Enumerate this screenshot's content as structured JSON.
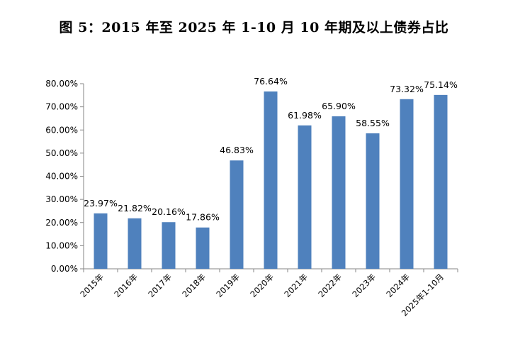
{
  "chart_data": {
    "type": "bar",
    "title": "图 5：2015 年至 2025 年 1-10 月 10 年期及以上债券占比",
    "categories": [
      "2015年",
      "2016年",
      "2017年",
      "2018年",
      "2019年",
      "2020年",
      "2021年",
      "2022年",
      "2023年",
      "2024年",
      "2025年1-10月"
    ],
    "values": [
      23.97,
      21.82,
      20.16,
      17.86,
      46.83,
      76.64,
      61.98,
      65.9,
      58.55,
      73.32,
      75.14
    ],
    "data_labels": [
      "23.97%",
      "21.82%",
      "20.16%",
      "17.86%",
      "46.83%",
      "76.64%",
      "61.98%",
      "65.90%",
      "58.55%",
      "73.32%",
      "75.14%"
    ],
    "xlabel": "",
    "ylabel": "",
    "ylim": [
      0,
      80
    ],
    "yticks": [
      0,
      10,
      20,
      30,
      40,
      50,
      60,
      70,
      80
    ],
    "ytick_labels": [
      "0.00%",
      "10.00%",
      "20.00%",
      "30.00%",
      "40.00%",
      "50.00%",
      "60.00%",
      "70.00%",
      "80.00%"
    ],
    "grid": false,
    "legend": "none",
    "bar_color": "#4f81bd"
  }
}
